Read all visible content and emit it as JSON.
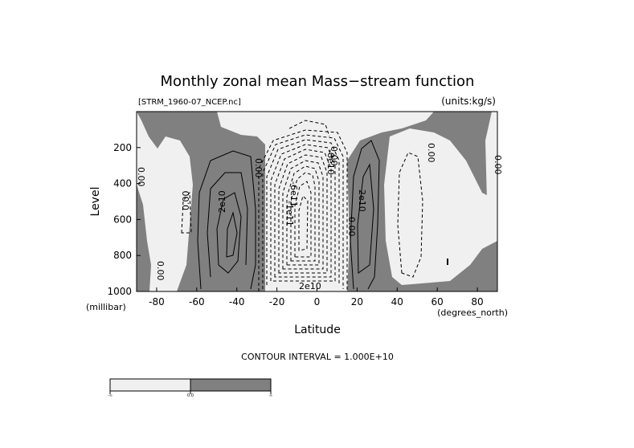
{
  "chart_data": {
    "type": "contour",
    "title": "Monthly zonal mean Mass−stream function",
    "file_label": "[STRM_1960-07_NCEP.nc]",
    "units_label": "(units:kg/s)",
    "xlabel": "Latitude",
    "ylabel": "Level",
    "x_unit": "(degrees_north)",
    "y_unit": "(millibar)",
    "x_range": [
      -90,
      90
    ],
    "y_range": [
      1000,
      0
    ],
    "x_ticks": [
      -80,
      -60,
      -40,
      -20,
      0,
      20,
      40,
      60,
      80
    ],
    "y_ticks": [
      200,
      400,
      600,
      800,
      1000
    ],
    "contour_interval": "CONTOUR INTERVAL = 1.000E+10",
    "shading": {
      "negative_color": "#f0f0f0",
      "positive_color": "#808080",
      "threshold": 0.0
    },
    "contour_labels": [
      "0.00",
      "0.00",
      "0.00",
      "0.00",
      "0.00",
      "0.00",
      "0.00",
      "0.00",
      "2e10",
      "2e10",
      "-6e11",
      "-1e11",
      "-8e10",
      "2e10"
    ],
    "colorbar": {
      "labels": [
        "-∞",
        "0.0",
        "∞"
      ],
      "colors": [
        "#f0f0f0",
        "#808080"
      ]
    }
  }
}
